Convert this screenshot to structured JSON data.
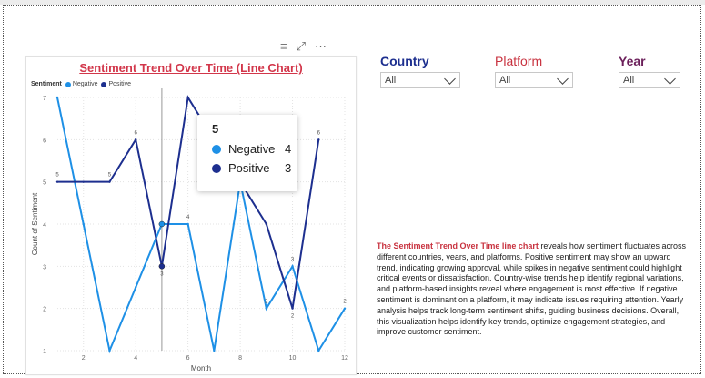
{
  "header_icons": {
    "filter": "≡",
    "focus": "⤢",
    "more": "···"
  },
  "chart_data": {
    "type": "line",
    "title": "Sentiment Trend Over Time (Line Chart)",
    "legend_title": "Sentiment",
    "xlabel": "Month",
    "ylabel": "Count of Sentiment",
    "xlim": [
      1,
      12
    ],
    "ylim": [
      1,
      7
    ],
    "x_ticks": [
      2,
      4,
      6,
      8,
      10,
      12
    ],
    "y_ticks": [
      1,
      2,
      3,
      4,
      5,
      6,
      7
    ],
    "x": [
      1,
      2,
      3,
      4,
      5,
      6,
      7,
      8,
      9,
      10,
      11,
      12
    ],
    "series": [
      {
        "name": "Negative",
        "color": "#1e90e6",
        "values": [
          7,
          4,
          1,
          2.5,
          4,
          4,
          1,
          5,
          2,
          3,
          1,
          2
        ],
        "labels": [
          "",
          "",
          "",
          "",
          "",
          "4",
          "",
          "",
          "2",
          "3",
          "",
          "2"
        ]
      },
      {
        "name": "Positive",
        "color": "#1d2f8f",
        "values": [
          5,
          5,
          5,
          6,
          3,
          7,
          6,
          5,
          4,
          2,
          6,
          null
        ],
        "labels": [
          "5",
          "",
          "5",
          "6",
          "3",
          "",
          "",
          "",
          "",
          "2",
          "6",
          ""
        ]
      }
    ],
    "hover_x": 5,
    "grid": true,
    "legend_position": "top-left"
  },
  "tooltip": {
    "title": "5",
    "rows": [
      {
        "label": "Negative",
        "value": "4",
        "color": "#1e90e6"
      },
      {
        "label": "Positive",
        "value": "3",
        "color": "#1d2f8f"
      }
    ]
  },
  "slicers": [
    {
      "label": "Country",
      "value": "All",
      "color": "#1d2f8f"
    },
    {
      "label": "Platform",
      "value": "All",
      "color": "#c8323f"
    },
    {
      "label": "Year",
      "value": "All",
      "color": "#6b1f5a"
    }
  ],
  "description": {
    "highlight": "The Sentiment Trend Over Time line chart",
    "body": " reveals how sentiment fluctuates across different countries, years, and platforms. Positive sentiment may show an upward trend, indicating growing approval, while spikes in negative sentiment could highlight critical events or dissatisfaction. Country-wise trends help identify regional variations, and platform-based insights reveal where engagement is most effective. If negative sentiment is dominant on a platform, it may indicate issues requiring attention. Yearly analysis helps track long-term sentiment shifts, guiding business decisions. Overall, this visualization helps identify key trends, optimize engagement strategies, and improve customer sentiment."
  }
}
